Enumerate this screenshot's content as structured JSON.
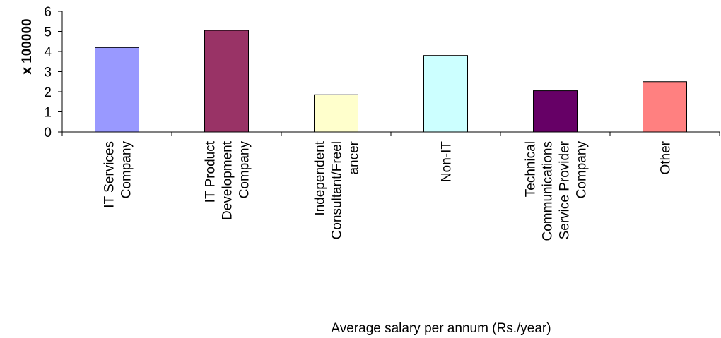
{
  "chart_data": {
    "type": "bar",
    "categories": [
      [
        "IT Services",
        "Company"
      ],
      [
        "IT Product",
        "Development",
        "Company"
      ],
      [
        "Independent",
        "Consultant/Freel",
        "ancer"
      ],
      [
        "Non-IT"
      ],
      [
        "Technical",
        "Communications",
        "Service Provider",
        "Company"
      ],
      [
        "Other"
      ]
    ],
    "values": [
      4.2,
      5.05,
      1.85,
      3.8,
      2.05,
      2.5
    ],
    "colors": [
      "#9999ff",
      "#993366",
      "#ffffcc",
      "#ccffff",
      "#660066",
      "#ff8080"
    ],
    "ylim": [
      0,
      6
    ],
    "yticks": [
      "0",
      "1",
      "2",
      "3",
      "4",
      "5",
      "6"
    ],
    "ylabel": "x 100000",
    "xlabel": "Average salary per annum (Rs./year)",
    "grid": false
  }
}
